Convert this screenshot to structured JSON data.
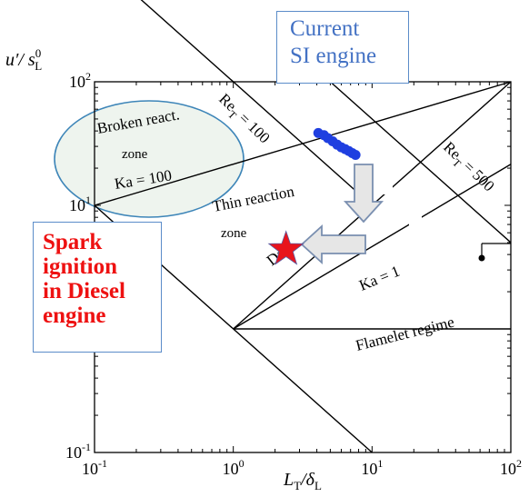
{
  "chart_data": {
    "type": "scatter",
    "x_scale": "log",
    "y_scale": "log",
    "xlim": [
      0.1,
      100
    ],
    "ylim": [
      0.1,
      100
    ],
    "xlabel": "L_T/δ_L",
    "ylabel": "u'/s_L^0",
    "x_ticks": [
      {
        "value": 0.1,
        "base": "10",
        "exp": "-1"
      },
      {
        "value": 1,
        "base": "10",
        "exp": "0"
      },
      {
        "value": 10,
        "base": "10",
        "exp": "1"
      },
      {
        "value": 100,
        "base": "10",
        "exp": "2"
      }
    ],
    "y_ticks": [
      {
        "value": 0.1,
        "base": "10",
        "exp": "-1"
      },
      {
        "value": 1,
        "base": "10",
        "exp": "0"
      },
      {
        "value": 10,
        "base": "10",
        "exp": "1"
      },
      {
        "value": 100,
        "base": "10",
        "exp": "2"
      }
    ],
    "regime_lines": [
      {
        "name": "Re_T = 1",
        "points": [
          [
            0.1,
            10
          ],
          [
            10,
            0.1
          ]
        ]
      },
      {
        "name": "Re_T = 100",
        "points": [
          [
            0.1,
            1000
          ],
          [
            10,
            10
          ]
        ]
      },
      {
        "name": "Re_T = 500",
        "points": [
          [
            5,
            100
          ],
          [
            100,
            5
          ]
        ]
      },
      {
        "name": "Ka = 1",
        "points": [
          [
            1,
            1
          ],
          [
            100,
            21.5
          ]
        ]
      },
      {
        "name": "Ka = 100",
        "points": [
          [
            0.1,
            10
          ],
          [
            100,
            100
          ]
        ]
      },
      {
        "name": "Da = 1",
        "points": [
          [
            1,
            1
          ],
          [
            100,
            100
          ]
        ]
      },
      {
        "name": "flamelet boundary",
        "points": [
          [
            1,
            1
          ],
          [
            100,
            1
          ]
        ]
      }
    ],
    "current_si_points": [
      [
        4.1,
        38.5
      ],
      [
        4.5,
        37
      ],
      [
        4.8,
        35
      ],
      [
        5.2,
        33
      ],
      [
        5.6,
        31
      ],
      [
        6.0,
        29.5
      ],
      [
        6.4,
        28.5
      ],
      [
        6.8,
        27.5
      ],
      [
        7.2,
        26.5
      ],
      [
        7.6,
        25.6
      ]
    ],
    "spark_ignition_diesel_point": [
      2.4,
      4.4
    ],
    "region_labels": {
      "broken": "Broken react.",
      "broken2": "zone",
      "ka100": "Ka = 100",
      "thin": "Thin reaction",
      "thin2": "zone",
      "re100": "Re",
      "re100sub": "T",
      "re100rest": " = 100",
      "re500": "Re",
      "re500sub": "T",
      "re500rest": " = 500",
      "da": "Da",
      "ka1": "Ka = 1",
      "flamelet": "Flamelet regime"
    },
    "colors": {
      "axes": "#000000",
      "ellipse": "#3d85b8",
      "ellipse_fill": "#eef4ee",
      "points": "#1f3fe0",
      "star": "#e8141c",
      "arrow_fill": "#e6e6e6",
      "arrow_edge": "#7a8fb0"
    }
  },
  "callouts": {
    "current_line1": "Current",
    "current_line2": "SI engine",
    "diesel_line1": "Spark",
    "diesel_line2": "ignition",
    "diesel_line3": "in Diesel",
    "diesel_line4": "engine"
  }
}
